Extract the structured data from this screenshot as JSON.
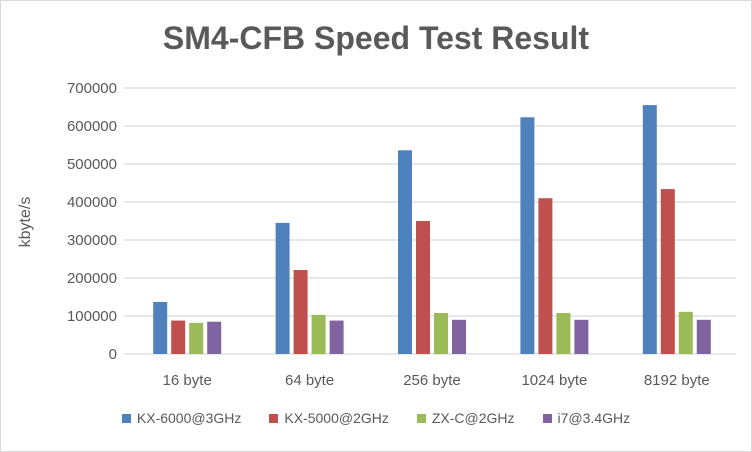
{
  "chart_data": {
    "type": "bar",
    "title": "SM4-CFB Speed Test Result",
    "xlabel": "",
    "ylabel": "kbyte/s",
    "ylim": [
      0,
      700000
    ],
    "yticks": [
      "0",
      "100000",
      "200000",
      "300000",
      "400000",
      "500000",
      "600000",
      "700000"
    ],
    "grid": true,
    "legend_position": "bottom",
    "categories": [
      "16 byte",
      "64 byte",
      "256 byte",
      "1024 byte",
      "8192 byte"
    ],
    "series": [
      {
        "name": "KX-6000@3GHz",
        "color": "#4f81bd",
        "values": [
          137000,
          345000,
          536000,
          623000,
          655000
        ]
      },
      {
        "name": "KX-5000@2GHz",
        "color": "#c0504d",
        "values": [
          88000,
          221000,
          350000,
          410000,
          434000
        ]
      },
      {
        "name": "ZX-C@2GHz",
        "color": "#9bbb59",
        "values": [
          82000,
          103000,
          108000,
          108000,
          111000
        ]
      },
      {
        "name": "i7@3.4GHz",
        "color": "#8064a2",
        "values": [
          85000,
          88000,
          90000,
          90000,
          90000
        ]
      }
    ]
  }
}
